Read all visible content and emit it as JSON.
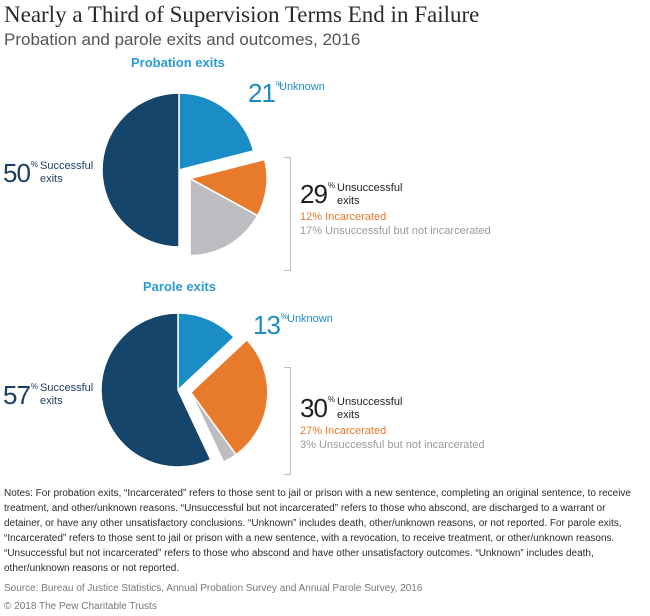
{
  "title": "Nearly a Third of Supervision Terms End in Failure",
  "subtitle": "Probation and parole exits and outcomes, 2016",
  "colors": {
    "successful": "#15456b",
    "unknown": "#1a8cc6",
    "incarcerated": "#e87b2b",
    "not_incarcerated": "#bcbdc0",
    "heading": "#2b9bd3"
  },
  "chart_data": [
    {
      "type": "pie",
      "title": "Probation exits",
      "slices": [
        {
          "key": "unknown",
          "name": "Unknown",
          "value": 21
        },
        {
          "key": "incarcerated",
          "name": "Incarcerated",
          "value": 12
        },
        {
          "key": "not_incarcerated",
          "name": "Unsuccessful but not incarcerated",
          "value": 17
        },
        {
          "key": "successful",
          "name": "Successful exits",
          "value": 50
        }
      ],
      "labels": {
        "successful_value": "50",
        "successful_text": [
          "Successful",
          "exits"
        ],
        "unknown_value": "21",
        "unknown_text": "Unknown",
        "unsuccessful_value": "29",
        "unsuccessful_text": [
          "Unsuccessful",
          "exits"
        ],
        "incarcerated_text": "12% Incarcerated",
        "not_incarcerated_text": "17% Unsuccessful but not incarcerated"
      }
    },
    {
      "type": "pie",
      "title": "Parole exits",
      "slices": [
        {
          "key": "unknown",
          "name": "Unknown",
          "value": 13
        },
        {
          "key": "incarcerated",
          "name": "Incarcerated",
          "value": 27
        },
        {
          "key": "not_incarcerated",
          "name": "Unsuccessful but not incarcerated",
          "value": 3
        },
        {
          "key": "successful",
          "name": "Successful exits",
          "value": 57
        }
      ],
      "labels": {
        "successful_value": "57",
        "successful_text": [
          "Successful",
          "exits"
        ],
        "unknown_value": "13",
        "unknown_text": "Unknown",
        "unsuccessful_value": "30",
        "unsuccessful_text": [
          "Unsuccessful",
          "exits"
        ],
        "incarcerated_text": "27% Incarcerated",
        "not_incarcerated_text": "3% Unsuccessful but not incarcerated"
      }
    }
  ],
  "notes": "Notes: For probation exits, “Incarcerated” refers to those sent to jail or prison with a new sentence, completing an original sentence, to receive treatment, and other/unknown reasons. “Unsuccessful but not incarcerated” refers to those who abscond, are discharged to a warrant or detainer, or have any other unsatisfactory conclusions. “Unknown” includes death, other/unknown reasons, or not reported. For parole exits, “Incarcerated” refers to those sent to jail or prison with a new sentence, with a revocation, to receive treatment, or other/unknown reasons. “Unsuccessful but not incarcerated” refers to those who abscond and have other unsatisfactory outcomes. “Unknown” includes death, other/unknown reasons or not reported.",
  "source": "Source: Bureau of Justice Statistics, Annual Probation Survey and Annual Parole Survey, 2016",
  "copyright": "© 2018 The Pew Charitable Trusts",
  "percent_symbol": "%"
}
